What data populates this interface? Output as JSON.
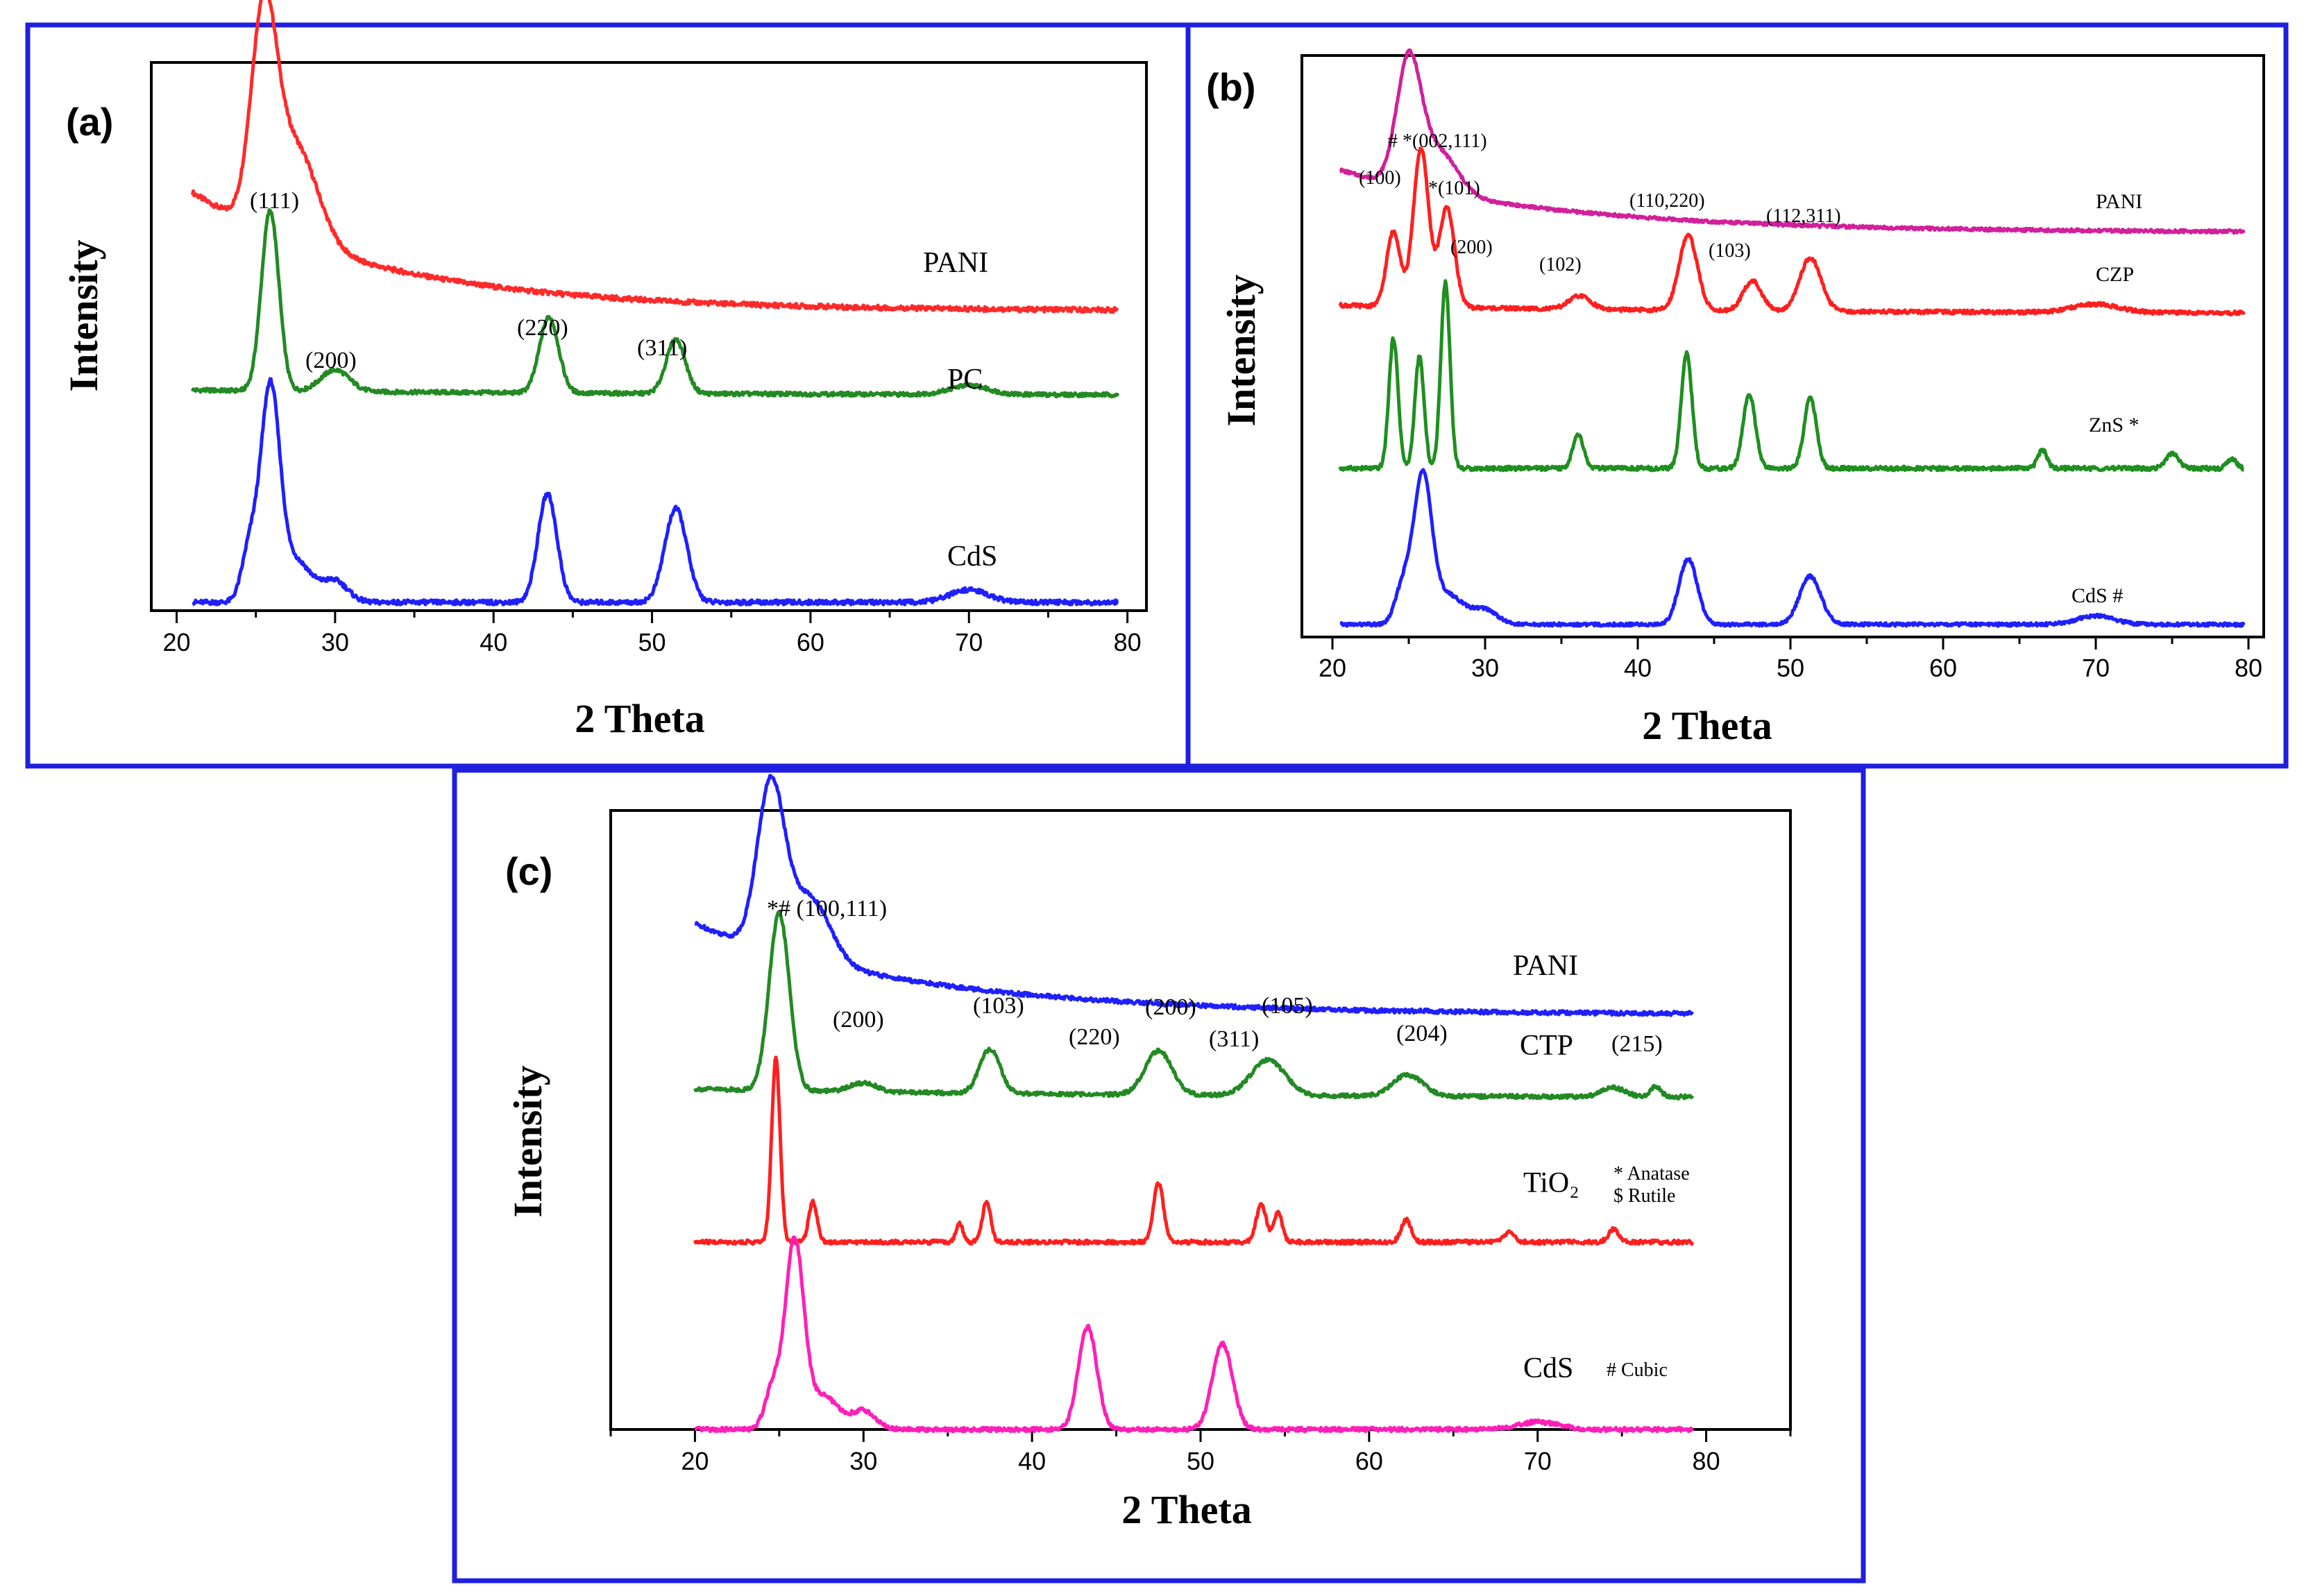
{
  "chart_data": [
    {
      "panel": "(a)",
      "type": "line",
      "xlabel": "2 Theta",
      "ylabel": "Intensity",
      "xlim": [
        20,
        80
      ],
      "xticks": [
        20,
        30,
        40,
        50,
        60,
        70,
        80
      ],
      "series": [
        {
          "name": "PANI",
          "color": "#ff2a2a",
          "peaks": [
            {
              "x": 25.5,
              "h": 0.95,
              "w": 0.8
            },
            {
              "x": 27.5,
              "h": 0.45,
              "w": 1.4
            }
          ],
          "baseline": {
            "start": 0.55,
            "end": 0.0,
            "decay": 12
          }
        },
        {
          "name": "PC",
          "color": "#238a23",
          "peaks": [
            {
              "x": 25.9,
              "h": 1.0,
              "w": 0.55
            },
            {
              "x": 30.0,
              "h": 0.12,
              "w": 0.9
            },
            {
              "x": 43.5,
              "h": 0.42,
              "w": 0.6
            },
            {
              "x": 51.5,
              "h": 0.3,
              "w": 0.6
            },
            {
              "x": 70.0,
              "h": 0.05,
              "w": 1.2
            }
          ],
          "baseline": {
            "start": 0.03,
            "end": 0.0,
            "decay": 30
          }
        },
        {
          "name": "CdS",
          "color": "#1f1fff",
          "peaks": [
            {
              "x": 25.9,
              "h": 1.0,
              "w": 0.6
            },
            {
              "x": 27.5,
              "h": 0.2,
              "w": 1.0
            },
            {
              "x": 24.6,
              "h": 0.25,
              "w": 0.5
            },
            {
              "x": 30.0,
              "h": 0.1,
              "w": 0.8
            },
            {
              "x": 43.4,
              "h": 0.52,
              "w": 0.6
            },
            {
              "x": 51.5,
              "h": 0.45,
              "w": 0.7
            },
            {
              "x": 70.0,
              "h": 0.06,
              "w": 1.2
            }
          ],
          "baseline": {
            "start": 0.0,
            "end": 0.0,
            "decay": 30
          }
        }
      ],
      "annotations": [
        {
          "text": "(111)",
          "x": 26.0
        },
        {
          "text": "(200)",
          "x": 30.0
        },
        {
          "text": "(220)",
          "x": 43.5
        },
        {
          "text": "(311)",
          "x": 51.5
        }
      ]
    },
    {
      "panel": "(b)",
      "type": "line",
      "xlabel": "2 Theta",
      "ylabel": "Intensity",
      "xlim": [
        20,
        80
      ],
      "xticks": [
        20,
        30,
        40,
        50,
        60,
        70,
        80
      ],
      "series": [
        {
          "name": "PANI",
          "color": "#d21f9b",
          "peaks": [
            {
              "x": 25.0,
              "h": 0.9,
              "w": 0.8
            },
            {
              "x": 27.0,
              "h": 0.3,
              "w": 1.2
            }
          ],
          "baseline": {
            "start": 0.45,
            "end": 0.0,
            "decay": 14
          }
        },
        {
          "name": "CZP",
          "color": "#ff1f1f",
          "peaks": [
            {
              "x": 24.0,
              "h": 0.45,
              "w": 0.45
            },
            {
              "x": 25.8,
              "h": 0.95,
              "w": 0.5
            },
            {
              "x": 27.5,
              "h": 0.6,
              "w": 0.5
            },
            {
              "x": 36.2,
              "h": 0.08,
              "w": 0.7
            },
            {
              "x": 43.3,
              "h": 0.45,
              "w": 0.6
            },
            {
              "x": 47.5,
              "h": 0.18,
              "w": 0.6
            },
            {
              "x": 51.3,
              "h": 0.32,
              "w": 0.7
            },
            {
              "x": 70.0,
              "h": 0.05,
              "w": 1.5
            }
          ],
          "baseline": {
            "start": 0.05,
            "end": 0.0,
            "decay": 25
          }
        },
        {
          "name": "ZnS",
          "color": "#1f8f1f",
          "peaks": [
            {
              "x": 24.0,
              "h": 0.7,
              "w": 0.3
            },
            {
              "x": 25.7,
              "h": 0.6,
              "w": 0.3
            },
            {
              "x": 27.4,
              "h": 1.0,
              "w": 0.3
            },
            {
              "x": 36.1,
              "h": 0.18,
              "w": 0.35
            },
            {
              "x": 43.2,
              "h": 0.62,
              "w": 0.35
            },
            {
              "x": 47.3,
              "h": 0.4,
              "w": 0.4
            },
            {
              "x": 51.3,
              "h": 0.38,
              "w": 0.4
            },
            {
              "x": 66.5,
              "h": 0.1,
              "w": 0.3
            },
            {
              "x": 75.0,
              "h": 0.08,
              "w": 0.4
            },
            {
              "x": 78.9,
              "h": 0.05,
              "w": 0.3
            }
          ],
          "baseline": {
            "start": 0.0,
            "end": 0.0,
            "decay": 30
          }
        },
        {
          "name": "CdS",
          "color": "#1f1fff",
          "peaks": [
            {
              "x": 25.9,
              "h": 1.0,
              "w": 0.6
            },
            {
              "x": 24.6,
              "h": 0.25,
              "w": 0.5
            },
            {
              "x": 27.6,
              "h": 0.2,
              "w": 1.0
            },
            {
              "x": 30.0,
              "h": 0.1,
              "w": 0.8
            },
            {
              "x": 43.3,
              "h": 0.45,
              "w": 0.6
            },
            {
              "x": 51.3,
              "h": 0.33,
              "w": 0.7
            },
            {
              "x": 70.0,
              "h": 0.06,
              "w": 1.2
            }
          ],
          "baseline": {
            "start": 0.0,
            "end": 0.0,
            "decay": 30
          }
        }
      ],
      "annotations": [
        {
          "text": "# *(002,111)"
        },
        {
          "text": "(100)"
        },
        {
          "text": "*(101)"
        },
        {
          "text": "(200)"
        },
        {
          "text": "(102)"
        },
        {
          "text": "(110,220)"
        },
        {
          "text": "(103)"
        },
        {
          "text": "(112,311)"
        }
      ],
      "legend_markers": [
        "ZnS *",
        "CdS #"
      ]
    },
    {
      "panel": "(c)",
      "type": "line",
      "xlabel": "2 Theta",
      "ylabel": "Intensity",
      "xlim": [
        15,
        85
      ],
      "xticks": [
        20,
        30,
        40,
        50,
        60,
        70,
        80
      ],
      "series": [
        {
          "name": "PANI",
          "color": "#1f1fff",
          "peaks": [
            {
              "x": 24.5,
              "h": 0.9,
              "w": 0.8
            },
            {
              "x": 26.8,
              "h": 0.35,
              "w": 1.2
            }
          ],
          "baseline": {
            "start": 0.5,
            "end": 0.0,
            "decay": 13
          }
        },
        {
          "name": "CTP",
          "color": "#238a23",
          "peaks": [
            {
              "x": 25.0,
              "h": 1.0,
              "w": 0.6
            },
            {
              "x": 30.0,
              "h": 0.05,
              "w": 0.8
            },
            {
              "x": 37.5,
              "h": 0.25,
              "w": 0.6
            },
            {
              "x": 47.5,
              "h": 0.25,
              "w": 0.8
            },
            {
              "x": 54.0,
              "h": 0.2,
              "w": 1.0
            },
            {
              "x": 62.3,
              "h": 0.12,
              "w": 0.9
            },
            {
              "x": 74.5,
              "h": 0.05,
              "w": 0.7
            },
            {
              "x": 77.0,
              "h": 0.06,
              "w": 0.3
            }
          ],
          "baseline": {
            "start": 0.05,
            "end": 0.0,
            "decay": 25
          }
        },
        {
          "name": "TiO2",
          "color": "#ff1f1f",
          "peaks": [
            {
              "x": 24.8,
              "h": 1.0,
              "w": 0.25
            },
            {
              "x": 27.0,
              "h": 0.22,
              "w": 0.25
            },
            {
              "x": 35.7,
              "h": 0.1,
              "w": 0.2
            },
            {
              "x": 37.3,
              "h": 0.22,
              "w": 0.25
            },
            {
              "x": 47.5,
              "h": 0.32,
              "w": 0.3
            },
            {
              "x": 53.6,
              "h": 0.2,
              "w": 0.3
            },
            {
              "x": 54.6,
              "h": 0.16,
              "w": 0.25
            },
            {
              "x": 62.2,
              "h": 0.12,
              "w": 0.3
            },
            {
              "x": 68.3,
              "h": 0.05,
              "w": 0.3
            },
            {
              "x": 74.5,
              "h": 0.07,
              "w": 0.3
            }
          ],
          "baseline": {
            "start": 0.0,
            "end": 0.0,
            "decay": 30
          }
        },
        {
          "name": "CdS",
          "color": "#ff1fb8",
          "peaks": [
            {
              "x": 25.9,
              "h": 1.0,
              "w": 0.55
            },
            {
              "x": 24.6,
              "h": 0.22,
              "w": 0.45
            },
            {
              "x": 27.6,
              "h": 0.18,
              "w": 0.9
            },
            {
              "x": 30.0,
              "h": 0.1,
              "w": 0.7
            },
            {
              "x": 43.3,
              "h": 0.55,
              "w": 0.55
            },
            {
              "x": 51.3,
              "h": 0.46,
              "w": 0.6
            },
            {
              "x": 70.0,
              "h": 0.04,
              "w": 1.2
            }
          ],
          "baseline": {
            "start": 0.0,
            "end": 0.0,
            "decay": 30
          }
        }
      ],
      "annotations": [
        {
          "text": "*# (100,111)"
        },
        {
          "text": "(200)"
        },
        {
          "text": "(103)"
        },
        {
          "text": "(220)"
        },
        {
          "text": "(200)"
        },
        {
          "text": "(311)"
        },
        {
          "text": "(105)"
        },
        {
          "text": "(204)"
        },
        {
          "text": "(215)"
        }
      ],
      "legend_markers": [
        "* Anatase",
        "$ Rutile",
        "# Cubic"
      ],
      "tio2_label": "TiO₂"
    }
  ]
}
